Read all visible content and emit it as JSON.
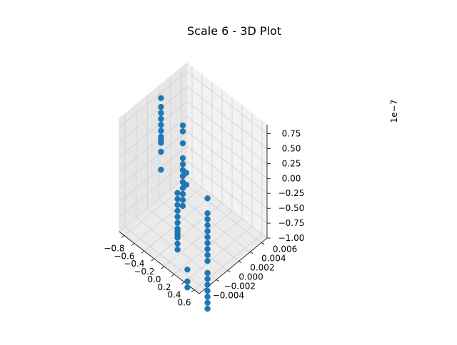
{
  "chart_data": {
    "type": "scatter",
    "title": "Scale 6 - 3D Plot",
    "xlabel": "",
    "ylabel": "",
    "zlabel": "",
    "z_offset_label": "1e−7",
    "xlim": [
      -0.9,
      0.7
    ],
    "ylim": [
      -0.005,
      0.007
    ],
    "zlim": [
      -1.0,
      0.9
    ],
    "x_ticks": [
      -0.8,
      -0.6,
      -0.4,
      -0.2,
      0.0,
      0.2,
      0.4,
      0.6
    ],
    "x_tick_labels": [
      "−0.8",
      "−0.6",
      "−0.4",
      "−0.2",
      "0.0",
      "0.2",
      "0.4",
      "0.6"
    ],
    "y_ticks": [
      -0.004,
      -0.002,
      0.0,
      0.002,
      0.004,
      0.006
    ],
    "y_tick_labels": [
      "−0.004",
      "−0.002",
      "0.000",
      "0.002",
      "0.004",
      "0.006"
    ],
    "z_ticks": [
      -1.0,
      -0.75,
      -0.5,
      -0.25,
      0.0,
      0.25,
      0.5,
      0.75
    ],
    "z_tick_labels": [
      "−1.00",
      "−0.75",
      "−0.50",
      "−0.25",
      "0.00",
      "0.25",
      "0.50",
      "0.75"
    ],
    "grid": true,
    "series": [
      {
        "color": "#1f77b4",
        "points": [
          [
            -0.8,
            0.0015,
            0.8
          ],
          [
            -0.8,
            0.0015,
            0.65
          ],
          [
            -0.8,
            0.0015,
            0.55
          ],
          [
            -0.8,
            0.0015,
            0.45
          ],
          [
            -0.8,
            0.0015,
            0.35
          ],
          [
            -0.8,
            0.0015,
            0.25
          ],
          [
            -0.8,
            0.0015,
            0.15
          ],
          [
            -0.8,
            0.0015,
            0.1
          ],
          [
            -0.8,
            0.0015,
            0.05
          ],
          [
            -0.8,
            0.0015,
            -0.1
          ],
          [
            -0.8,
            0.0015,
            -0.4
          ],
          [
            -0.42,
            0.002,
            0.55
          ],
          [
            -0.42,
            0.002,
            0.45
          ],
          [
            -0.42,
            0.002,
            0.25
          ],
          [
            -0.42,
            0.002,
            0.0
          ],
          [
            -0.42,
            0.002,
            -0.1
          ],
          [
            -0.42,
            0.002,
            -0.2
          ],
          [
            -0.42,
            0.002,
            -0.3
          ],
          [
            -0.42,
            0.002,
            -0.4
          ],
          [
            -0.42,
            0.002,
            -0.5
          ],
          [
            -0.42,
            0.002,
            -0.6
          ],
          [
            -0.42,
            0.002,
            -0.7
          ],
          [
            -0.42,
            0.002,
            -0.8
          ],
          [
            -0.35,
            0.002,
            -0.2
          ],
          [
            -0.35,
            0.002,
            -0.4
          ],
          [
            -0.3,
            0.0,
            -0.35
          ],
          [
            -0.3,
            0.0,
            -0.45
          ],
          [
            -0.3,
            0.0,
            -0.55
          ],
          [
            -0.3,
            0.0,
            -0.65
          ],
          [
            -0.3,
            0.0,
            -0.75
          ],
          [
            -0.3,
            0.0,
            -0.85
          ],
          [
            -0.3,
            0.0,
            -0.95
          ],
          [
            -0.3,
            0.0,
            -1.0
          ],
          [
            -0.3,
            0.0,
            -1.05
          ],
          [
            -0.3,
            0.0,
            -1.1
          ],
          [
            -0.3,
            0.0,
            -1.2
          ],
          [
            -0.3,
            0.0,
            -1.3
          ],
          [
            0.3,
            0.0,
            -0.05
          ],
          [
            0.3,
            0.0,
            -0.3
          ],
          [
            0.3,
            0.0,
            -0.4
          ],
          [
            0.3,
            0.0,
            -0.5
          ],
          [
            0.3,
            0.0,
            -0.6
          ],
          [
            0.3,
            0.0,
            -0.7
          ],
          [
            0.3,
            0.0,
            -0.8
          ],
          [
            0.3,
            0.0,
            -0.9
          ],
          [
            0.3,
            0.0,
            -1.0
          ],
          [
            0.3,
            0.0,
            -1.1
          ],
          [
            0.3,
            0.0,
            -1.3
          ],
          [
            0.3,
            0.0,
            -1.4
          ],
          [
            0.3,
            0.0,
            -1.5
          ],
          [
            0.3,
            0.0,
            -1.6
          ],
          [
            0.3,
            0.0,
            -1.7
          ],
          [
            0.3,
            0.0,
            -1.8
          ],
          [
            0.3,
            0.0,
            -1.9
          ],
          [
            0.35,
            -0.004,
            -0.9
          ],
          [
            0.35,
            -0.004,
            -1.1
          ],
          [
            0.35,
            -0.004,
            -1.2
          ]
        ]
      }
    ]
  }
}
